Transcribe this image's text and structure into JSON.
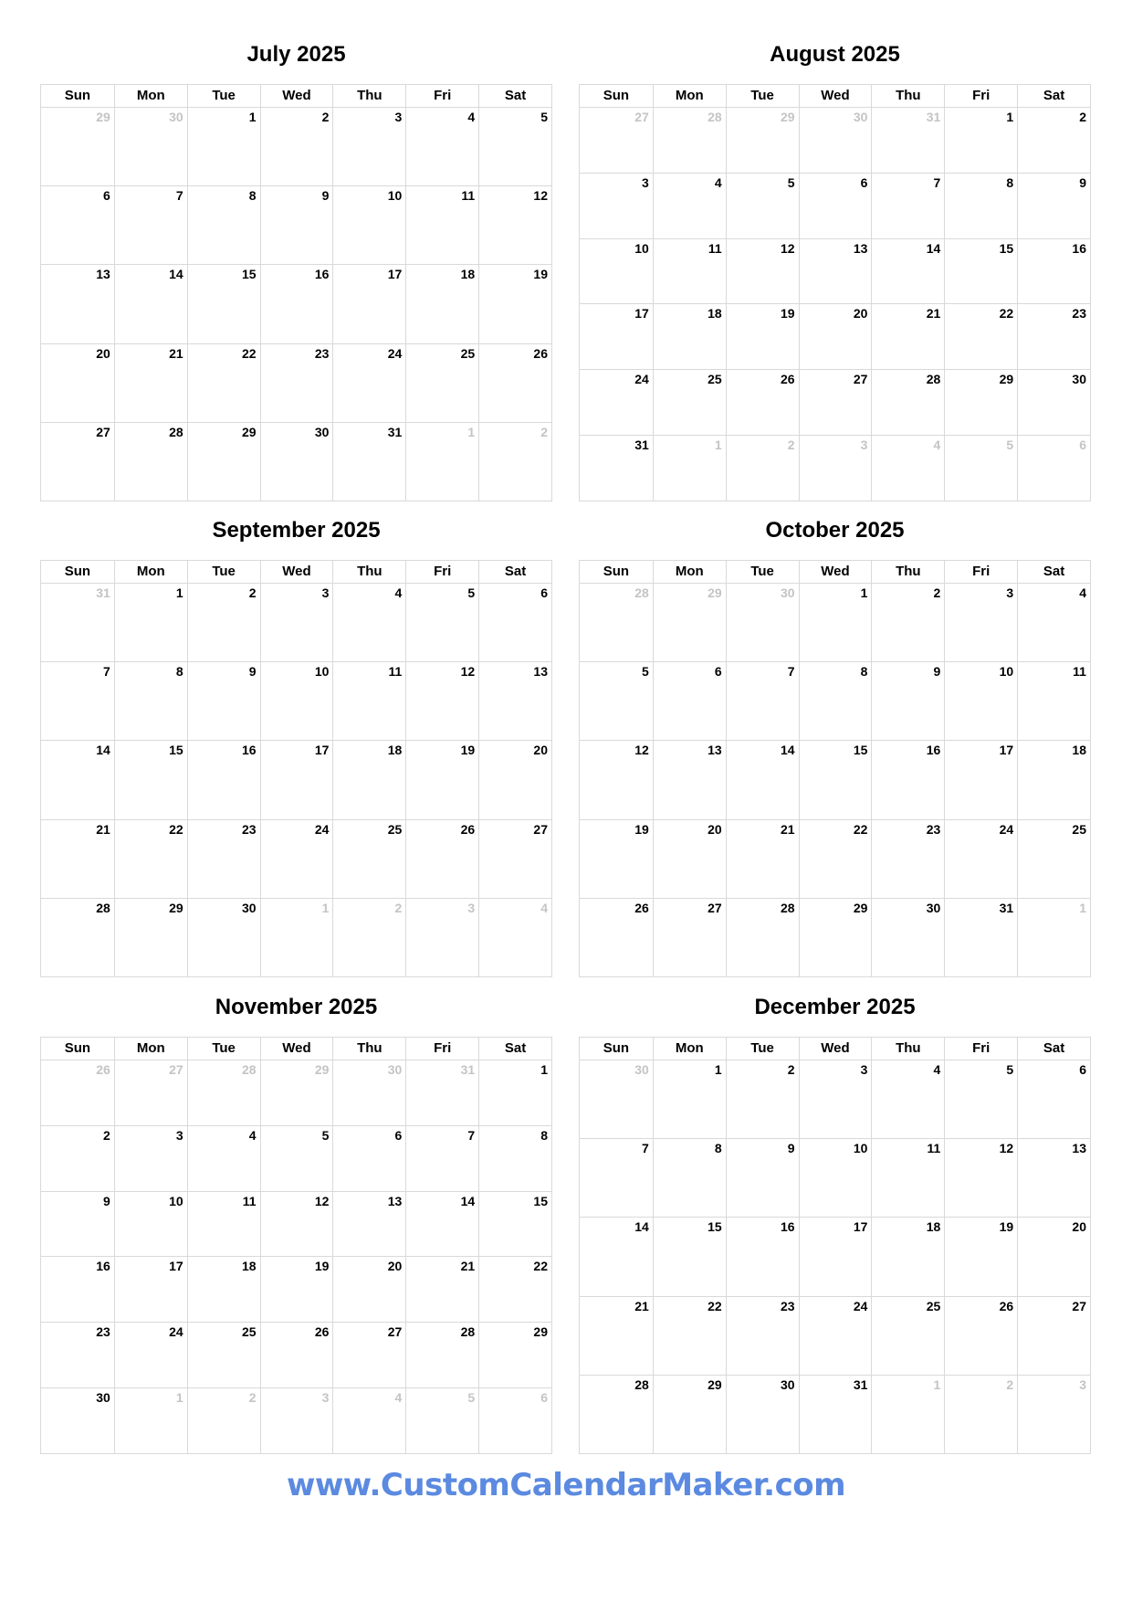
{
  "weekdays": [
    "Sun",
    "Mon",
    "Tue",
    "Wed",
    "Thu",
    "Fri",
    "Sat"
  ],
  "months": [
    {
      "title": "July 2025",
      "weeks": [
        [
          29,
          30,
          1,
          2,
          3,
          4,
          5
        ],
        [
          6,
          7,
          8,
          9,
          10,
          11,
          12
        ],
        [
          13,
          14,
          15,
          16,
          17,
          18,
          19
        ],
        [
          20,
          21,
          22,
          23,
          24,
          25,
          26
        ],
        [
          27,
          28,
          29,
          30,
          31,
          1,
          2
        ]
      ]
    },
    {
      "title": "August 2025",
      "weeks": [
        [
          27,
          28,
          29,
          30,
          31,
          1,
          2
        ],
        [
          3,
          4,
          5,
          6,
          7,
          8,
          9
        ],
        [
          10,
          11,
          12,
          13,
          14,
          15,
          16
        ],
        [
          17,
          18,
          19,
          20,
          21,
          22,
          23
        ],
        [
          24,
          25,
          26,
          27,
          28,
          29,
          30
        ],
        [
          31,
          1,
          2,
          3,
          4,
          5,
          6
        ]
      ]
    },
    {
      "title": "September 2025",
      "weeks": [
        [
          31,
          1,
          2,
          3,
          4,
          5,
          6
        ],
        [
          7,
          8,
          9,
          10,
          11,
          12,
          13
        ],
        [
          14,
          15,
          16,
          17,
          18,
          19,
          20
        ],
        [
          21,
          22,
          23,
          24,
          25,
          26,
          27
        ],
        [
          28,
          29,
          30,
          1,
          2,
          3,
          4
        ]
      ]
    },
    {
      "title": "October 2025",
      "weeks": [
        [
          28,
          29,
          30,
          1,
          2,
          3,
          4
        ],
        [
          5,
          6,
          7,
          8,
          9,
          10,
          11
        ],
        [
          12,
          13,
          14,
          15,
          16,
          17,
          18
        ],
        [
          19,
          20,
          21,
          22,
          23,
          24,
          25
        ],
        [
          26,
          27,
          28,
          29,
          30,
          31,
          1
        ]
      ]
    },
    {
      "title": "November 2025",
      "weeks": [
        [
          26,
          27,
          28,
          29,
          30,
          31,
          1
        ],
        [
          2,
          3,
          4,
          5,
          6,
          7,
          8
        ],
        [
          9,
          10,
          11,
          12,
          13,
          14,
          15
        ],
        [
          16,
          17,
          18,
          19,
          20,
          21,
          22
        ],
        [
          23,
          24,
          25,
          26,
          27,
          28,
          29
        ],
        [
          30,
          1,
          2,
          3,
          4,
          5,
          6
        ]
      ]
    },
    {
      "title": "December 2025",
      "weeks": [
        [
          30,
          1,
          2,
          3,
          4,
          5,
          6
        ],
        [
          7,
          8,
          9,
          10,
          11,
          12,
          13
        ],
        [
          14,
          15,
          16,
          17,
          18,
          19,
          20
        ],
        [
          21,
          22,
          23,
          24,
          25,
          26,
          27
        ],
        [
          28,
          29,
          30,
          31,
          1,
          2,
          3
        ]
      ]
    }
  ],
  "colors": {
    "grid": "#d9d9d9",
    "muted_day": "#c4c4c4",
    "watermark": "#5b8ae0"
  },
  "footer": {
    "watermark": "www.CustomCalendarMaker.com"
  }
}
